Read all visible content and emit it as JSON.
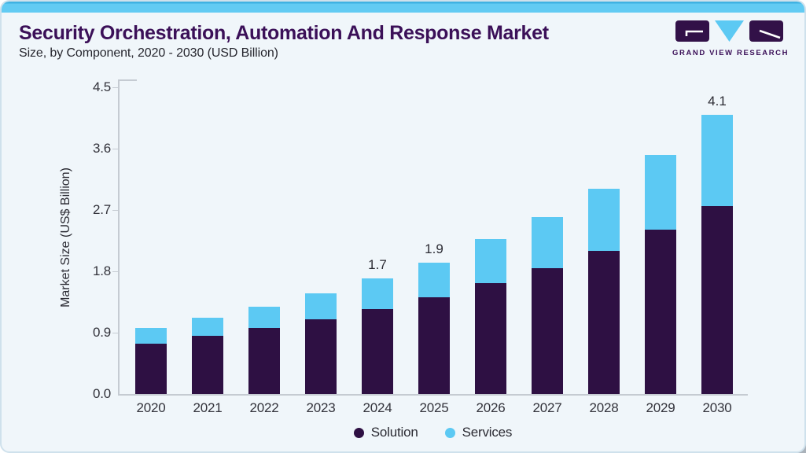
{
  "header": {
    "title": "Security Orchestration, Automation And Response Market",
    "subtitle": "Size, by Component, 2020 - 2030 (USD Billion)"
  },
  "logo": {
    "text": "GRAND VIEW RESEARCH"
  },
  "chart_data": {
    "type": "bar",
    "stacked": true,
    "title": "Security Orchestration, Automation And Response Market Size, by Component, 2020 - 2030 (USD Billion)",
    "ylabel": "Market Size (US$ Billion)",
    "xlabel": "",
    "ylim": [
      0,
      4.5
    ],
    "yticks": [
      "0.0",
      "0.9",
      "1.8",
      "2.7",
      "3.6",
      "4.5"
    ],
    "grid": false,
    "legend_position": "bottom",
    "categories": [
      "2020",
      "2021",
      "2022",
      "2023",
      "2024",
      "2025",
      "2026",
      "2027",
      "2028",
      "2029",
      "2030"
    ],
    "series": [
      {
        "name": "Solution",
        "color": "#2e1043",
        "values": [
          0.74,
          0.85,
          0.97,
          1.1,
          1.25,
          1.42,
          1.62,
          1.85,
          2.1,
          2.41,
          2.76
        ]
      },
      {
        "name": "Services",
        "color": "#5cc9f3",
        "values": [
          0.23,
          0.26,
          0.31,
          0.38,
          0.45,
          0.51,
          0.64,
          0.75,
          0.91,
          1.1,
          1.34
        ]
      }
    ],
    "bar_labels": [
      "",
      "",
      "",
      "",
      "1.7",
      "1.9",
      "",
      "",
      "",
      "",
      "4.1"
    ]
  },
  "colors": {
    "accent_strip": "#62cbf3",
    "card_background": "#f0f6fa",
    "card_border": "#cfe1ec",
    "title_text": "#3b1058",
    "body_text": "#2b2b33",
    "axis_line": "#c5cbd2",
    "series_solution": "#2e1043",
    "series_services": "#5cc9f3"
  }
}
